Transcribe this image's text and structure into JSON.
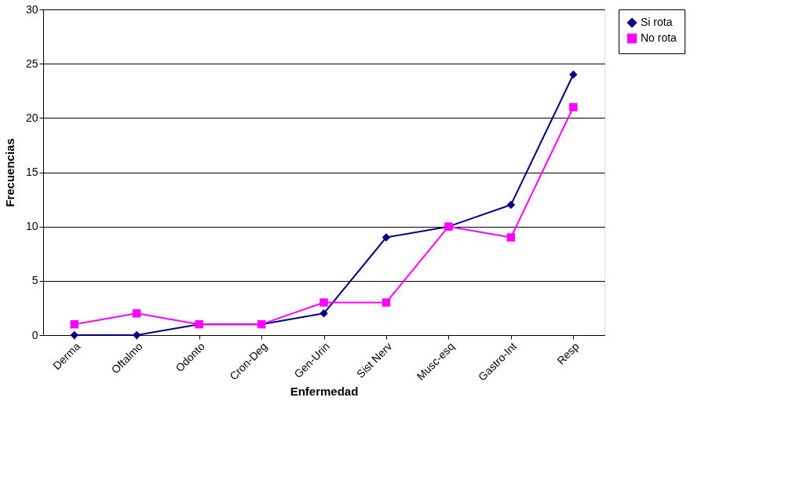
{
  "chart_data": {
    "type": "line",
    "xlabel": "Enfermedad",
    "ylabel": "Frecuencias",
    "categories": [
      "Derma",
      "Oftalmo",
      "Odonto",
      "Cron-Deg",
      "Gen-Urin",
      "Sist Nerv",
      "Musc-esq",
      "Gastro-Int",
      "Resp"
    ],
    "series": [
      {
        "name": "Si rota",
        "color": "#000080",
        "marker": "diamond",
        "values": [
          0,
          0,
          1,
          1,
          2,
          9,
          10,
          12,
          24
        ]
      },
      {
        "name": "No rota",
        "color": "#ff00ff",
        "marker": "square",
        "values": [
          1,
          2,
          1,
          1,
          3,
          3,
          10,
          9,
          21
        ]
      }
    ],
    "ylim": [
      0,
      30
    ],
    "yticks": [
      0,
      5,
      10,
      15,
      20,
      25,
      30
    ],
    "grid": "y",
    "legend": "right",
    "line_style": "solid"
  }
}
